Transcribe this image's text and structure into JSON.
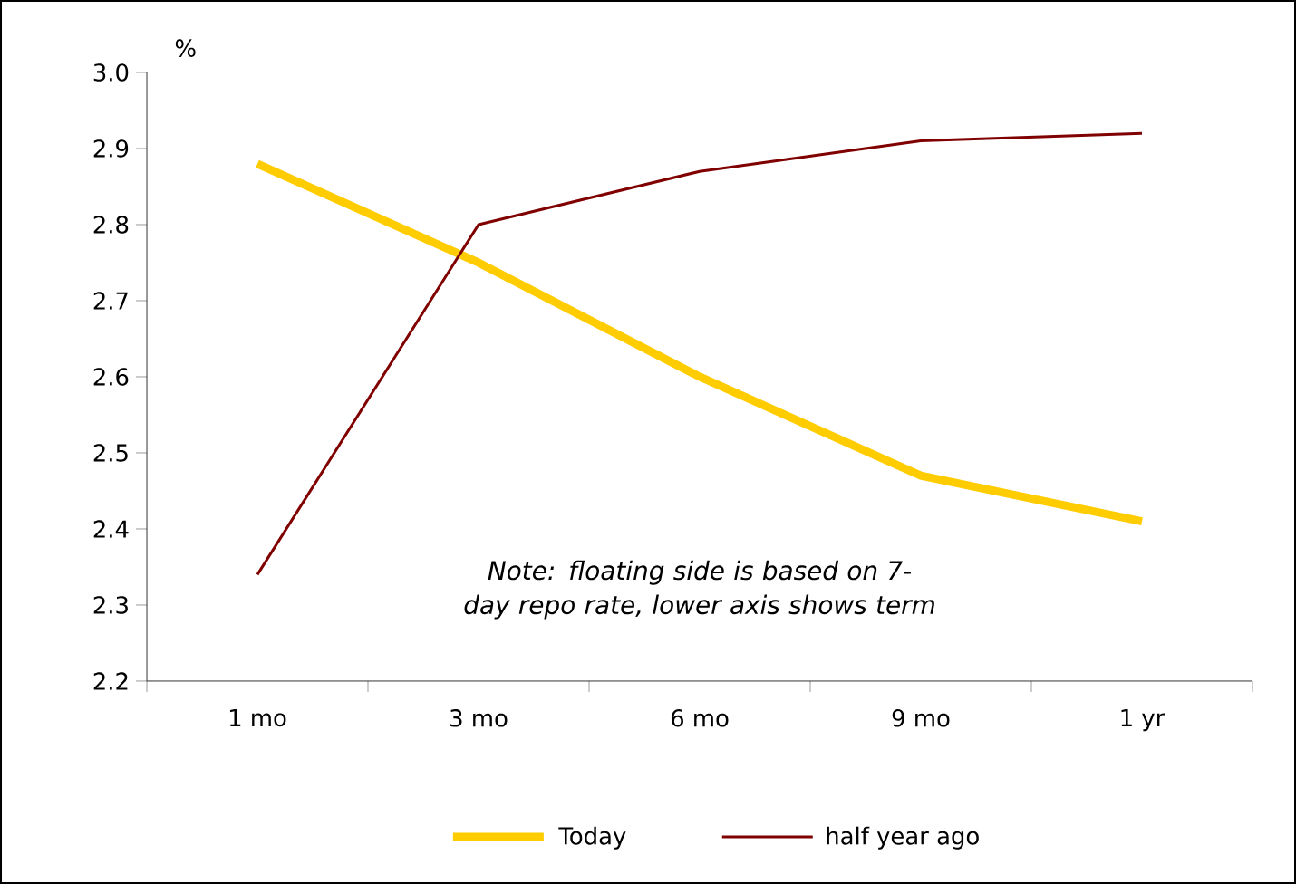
{
  "chart_data": {
    "type": "line",
    "ylabel": "%",
    "categories": [
      "1 mo",
      "3 mo",
      "6 mo",
      "9 mo",
      "1 yr"
    ],
    "series": [
      {
        "name": "Today",
        "color": "#ffcc00",
        "values": [
          2.88,
          2.75,
          2.6,
          2.47,
          2.41
        ]
      },
      {
        "name": "half year ago",
        "color": "#800000",
        "values": [
          2.34,
          2.8,
          2.87,
          2.91,
          2.92
        ]
      }
    ],
    "ylim": [
      2.2,
      3.0
    ],
    "yticks": [
      2.2,
      2.3,
      2.4,
      2.5,
      2.6,
      2.7,
      2.8,
      2.9,
      {
        "value": 3.0,
        "label": "3.0"
      }
    ],
    "annotations": [
      "Note: floating side is based on 7-day repo rate, lower axis shows term"
    ],
    "legend": "bottom",
    "grid": false,
    "marker": "none"
  }
}
